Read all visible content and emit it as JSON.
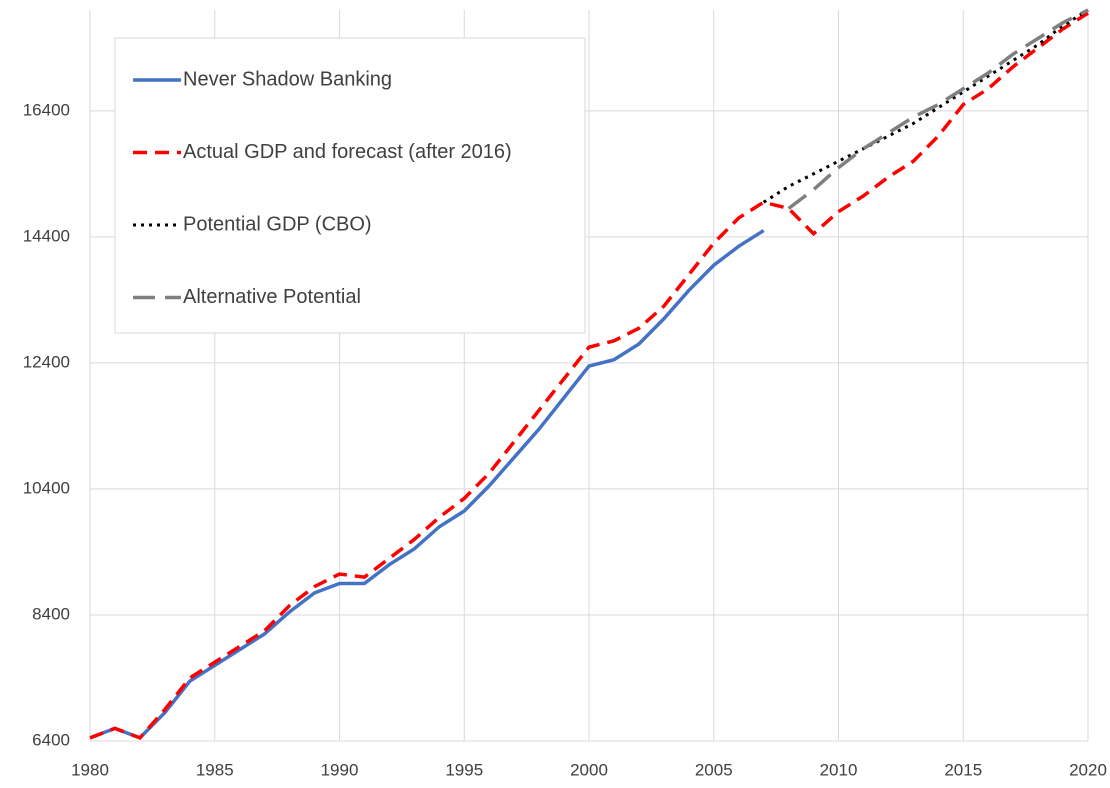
{
  "chart_data": {
    "type": "line",
    "x": [
      1980,
      1981,
      1982,
      1983,
      1984,
      1985,
      1986,
      1987,
      1988,
      1989,
      1990,
      1991,
      1992,
      1993,
      1994,
      1995,
      1996,
      1997,
      1998,
      1999,
      2000,
      2001,
      2002,
      2003,
      2004,
      2005,
      2006,
      2007,
      2008,
      2009,
      2010,
      2011,
      2012,
      2013,
      2014,
      2015,
      2016,
      2017,
      2018,
      2019,
      2020
    ],
    "series": [
      {
        "name": "Never Shadow Banking",
        "color": "#4472c4",
        "style": "solid",
        "values": [
          6450,
          6600,
          6450,
          6850,
          7350,
          7600,
          7850,
          8100,
          8450,
          8750,
          8900,
          8900,
          9200,
          9450,
          9800,
          10050,
          10450,
          10900,
          11350,
          11850,
          12350,
          12450,
          12700,
          13100,
          13550,
          13950,
          14250,
          14500,
          null,
          null,
          null,
          null,
          null,
          null,
          null,
          null,
          null,
          null,
          null,
          null,
          null
        ]
      },
      {
        "name": "Actual GDP and forecast (after 2016)",
        "color": "#ff0000",
        "style": "dashed",
        "values": [
          6450,
          6600,
          6450,
          6900,
          7400,
          7650,
          7900,
          8150,
          8550,
          8850,
          9050,
          9000,
          9300,
          9600,
          9950,
          10250,
          10650,
          11150,
          11650,
          12150,
          12650,
          12750,
          12950,
          13300,
          13800,
          14300,
          14700,
          14950,
          14850,
          14450,
          14800,
          15050,
          15350,
          15600,
          16000,
          16500,
          16750,
          17100,
          17400,
          17700,
          17950
        ]
      },
      {
        "name": "Potential GDP (CBO)",
        "color": "#000000",
        "style": "dotted",
        "values": [
          null,
          null,
          null,
          null,
          null,
          null,
          null,
          null,
          null,
          null,
          null,
          null,
          null,
          null,
          null,
          null,
          null,
          null,
          null,
          null,
          null,
          null,
          null,
          null,
          null,
          null,
          null,
          14950,
          15200,
          15400,
          15600,
          15800,
          16000,
          16200,
          16450,
          16700,
          16950,
          17200,
          17450,
          17750,
          18000
        ]
      },
      {
        "name": "Alternative Potential",
        "color": "#7f7f7f",
        "style": "long-dash",
        "values": [
          null,
          null,
          null,
          null,
          null,
          null,
          null,
          null,
          null,
          null,
          null,
          null,
          null,
          null,
          null,
          null,
          null,
          null,
          null,
          null,
          null,
          null,
          null,
          null,
          null,
          null,
          null,
          null,
          14850,
          15150,
          15500,
          15800,
          16050,
          16300,
          16500,
          16750,
          17000,
          17300,
          17550,
          17800,
          18000
        ]
      }
    ],
    "xlim": [
      1980,
      2020
    ],
    "xticks": [
      1980,
      1985,
      1990,
      1995,
      2000,
      2005,
      2010,
      2015,
      2020
    ],
    "ylim": [
      6400,
      18000
    ],
    "yticks": [
      6400,
      8400,
      10400,
      12400,
      14400,
      16400
    ],
    "grid": true,
    "legend": "upper-left"
  }
}
